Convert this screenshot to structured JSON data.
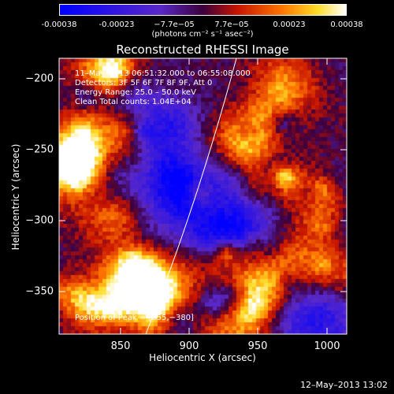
{
  "colorbar": {
    "ticks": [
      "-0.00038",
      "-0.00023",
      "−7.7e−05",
      "7.7e−05",
      "0.00023",
      "0.00038"
    ],
    "units": "(photons cm⁻² s⁻¹ asec⁻²)"
  },
  "title": "Reconstructed RHESSI Image",
  "annotations": {
    "time_range": "11–May–2013 06:51:32.000 to 06:55:08.000",
    "detectors": "Detectors: 3F 5F 6F 7F 8F 9F, Att 0",
    "energy_range": "Energy Range: 25.0 – 50.0 keV",
    "method": "Clean     Total counts: 1.04E+04",
    "peak": "Position of Peak = [855,−380]"
  },
  "axes": {
    "xlabel": "Heliocentric X (arcsec)",
    "ylabel": "Heliocentric Y (arcsec)",
    "xticks": [
      "850",
      "900",
      "950",
      "1000"
    ],
    "yticks": [
      "−200",
      "−250",
      "−300",
      "−350"
    ]
  },
  "timestamp": "12–May–2013 13:02",
  "colors": {
    "background": "#000000",
    "limb": "#ffffff"
  }
}
